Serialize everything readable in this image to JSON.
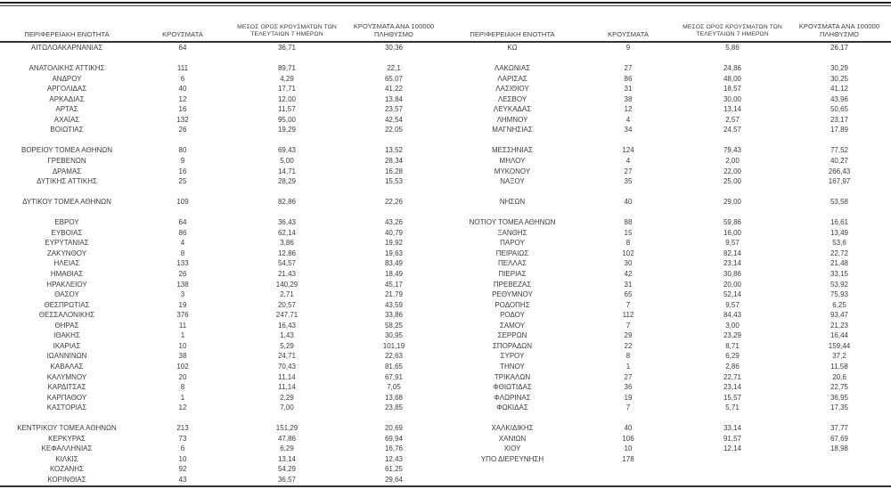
{
  "colors": {
    "text": "#3c3c3c",
    "border": "#333333"
  },
  "table": {
    "headers": {
      "region": "ΠΕΡΙΦΕΡΕΙΑΚΗ ΕΝΟΤΗΤΑ",
      "cases": "ΚΡΟΥΣΜΑΤΑ",
      "avg7": "ΜΕΣΟΣ ΟΡΟΣ ΚΡΟΥΣΜΑΤΩΝ ΤΩΝ ΤΕΛΕΥΤΑΙΩΝ 7 ΗΜΕΡΩΝ",
      "per100k": "ΚΡΟΥΣΜΑΤΑ ΑΝΑ 100000 ΠΛΗΘΥΣΜΟ"
    },
    "left_rows": [
      {
        "region": "ΑΙΤΩΛΟΑΚΑΡΝΑΝΙΑΣ",
        "cases": "64",
        "avg7": "36,71",
        "per100k": "30,36"
      },
      null,
      {
        "region": "ΑΝΑΤΟΛΙΚΗΣ ΑΤΤΙΚΗΣ",
        "cases": "111",
        "avg7": "89,71",
        "per100k": "22,1"
      },
      {
        "region": "ΑΝΔΡΟΥ",
        "cases": "6",
        "avg7": "4,29",
        "per100k": "65,07"
      },
      {
        "region": "ΑΡΓΟΛΙΔΑΣ",
        "cases": "40",
        "avg7": "17,71",
        "per100k": "41,22"
      },
      {
        "region": "ΑΡΚΑΔΙΑΣ",
        "cases": "12",
        "avg7": "12,00",
        "per100k": "13,84"
      },
      {
        "region": "ΑΡΤΑΣ",
        "cases": "16",
        "avg7": "11,57",
        "per100k": "23,57"
      },
      {
        "region": "ΑΧΑΪΑΣ",
        "cases": "132",
        "avg7": "95,00",
        "per100k": "42,54"
      },
      {
        "region": "ΒΟΙΩΤΙΑΣ",
        "cases": "26",
        "avg7": "19,29",
        "per100k": "22,05"
      },
      null,
      {
        "region": "ΒΟΡΕΙΟΥ ΤΟΜΕΑ ΑΘΗΝΩΝ",
        "cases": "80",
        "avg7": "69,43",
        "per100k": "13,52"
      },
      {
        "region": "ΓΡΕΒΕΝΩΝ",
        "cases": "9",
        "avg7": "5,00",
        "per100k": "28,34"
      },
      {
        "region": "ΔΡΑΜΑΣ",
        "cases": "16",
        "avg7": "14,71",
        "per100k": "16,28"
      },
      {
        "region": "ΔΥΤΙΚΗΣ ΑΤΤΙΚΗΣ",
        "cases": "25",
        "avg7": "28,29",
        "per100k": "15,53"
      },
      null,
      {
        "region": "ΔΥΤΙΚΟΥ ΤΟΜΕΑ ΑΘΗΝΩΝ",
        "cases": "109",
        "avg7": "82,86",
        "per100k": "22,26"
      },
      null,
      {
        "region": "ΕΒΡΟΥ",
        "cases": "64",
        "avg7": "36,43",
        "per100k": "43,26"
      },
      {
        "region": "ΕΥΒΟΙΑΣ",
        "cases": "86",
        "avg7": "62,14",
        "per100k": "40,79"
      },
      {
        "region": "ΕΥΡΥΤΑΝΙΑΣ",
        "cases": "4",
        "avg7": "3,86",
        "per100k": "19,92"
      },
      {
        "region": "ΖΑΚΥΝΘΟΥ",
        "cases": "8",
        "avg7": "12,86",
        "per100k": "19,63"
      },
      {
        "region": "ΗΛΕΙΑΣ",
        "cases": "133",
        "avg7": "54,57",
        "per100k": "83,49"
      },
      {
        "region": "ΗΜΑΘΙΑΣ",
        "cases": "26",
        "avg7": "21,43",
        "per100k": "18,49"
      },
      {
        "region": "ΗΡΑΚΛΕΙΟΥ",
        "cases": "138",
        "avg7": "140,29",
        "per100k": "45,17"
      },
      {
        "region": "ΘΑΣΟΥ",
        "cases": "3",
        "avg7": "2,71",
        "per100k": "21,79"
      },
      {
        "region": "ΘΕΣΠΡΩΤΙΑΣ",
        "cases": "19",
        "avg7": "20,57",
        "per100k": "43,59"
      },
      {
        "region": "ΘΕΣΣΑΛΟΝΙΚΗΣ",
        "cases": "376",
        "avg7": "247,71",
        "per100k": "33,86"
      },
      {
        "region": "ΘΗΡΑΣ",
        "cases": "11",
        "avg7": "16,43",
        "per100k": "58,25"
      },
      {
        "region": "ΙΘΑΚΗΣ",
        "cases": "1",
        "avg7": "1,43",
        "per100k": "30,95"
      },
      {
        "region": "ΙΚΑΡΙΑΣ",
        "cases": "10",
        "avg7": "5,29",
        "per100k": "101,19"
      },
      {
        "region": "ΙΩΑΝΝΙΝΩΝ",
        "cases": "38",
        "avg7": "24,71",
        "per100k": "22,63"
      },
      {
        "region": "ΚΑΒΑΛΑΣ",
        "cases": "102",
        "avg7": "70,43",
        "per100k": "81,65"
      },
      {
        "region": "ΚΑΛΥΜΝΟΥ",
        "cases": "20",
        "avg7": "11,14",
        "per100k": "67,91"
      },
      {
        "region": "ΚΑΡΔΙΤΣΑΣ",
        "cases": "8",
        "avg7": "11,14",
        "per100k": "7,05"
      },
      {
        "region": "ΚΑΡΠΑΘΟΥ",
        "cases": "1",
        "avg7": "2,29",
        "per100k": "13,68"
      },
      {
        "region": "ΚΑΣΤΟΡΙΑΣ",
        "cases": "12",
        "avg7": "7,00",
        "per100k": "23,85"
      },
      null,
      {
        "region": "ΚΕΝΤΡΙΚΟΥ ΤΟΜΕΑ ΑΘΗΝΩΝ",
        "cases": "213",
        "avg7": "151,29",
        "per100k": "20,69"
      },
      {
        "region": "ΚΕΡΚΥΡΑΣ",
        "cases": "73",
        "avg7": "47,86",
        "per100k": "69,94"
      },
      {
        "region": "ΚΕΦΑΛΛΗΝΙΑΣ",
        "cases": "6",
        "avg7": "6,29",
        "per100k": "16,76"
      },
      {
        "region": "ΚΙΛΚΙΣ",
        "cases": "10",
        "avg7": "13,14",
        "per100k": "12,43"
      },
      {
        "region": "ΚΟΖΑΝΗΣ",
        "cases": "92",
        "avg7": "54,29",
        "per100k": "61,25"
      },
      {
        "region": "ΚΟΡΙΝΘΙΑΣ",
        "cases": "43",
        "avg7": "36,57",
        "per100k": "29,64"
      }
    ],
    "right_rows": [
      {
        "region": "ΚΩ",
        "cases": "9",
        "avg7": "5,86",
        "per100k": "26,17"
      },
      null,
      {
        "region": "ΛΑΚΩΝΙΑΣ",
        "cases": "27",
        "avg7": "24,86",
        "per100k": "30,29"
      },
      {
        "region": "ΛΑΡΙΣΑΣ",
        "cases": "86",
        "avg7": "48,00",
        "per100k": "30,25"
      },
      {
        "region": "ΛΑΣΙΘΙΟΥ",
        "cases": "31",
        "avg7": "18,57",
        "per100k": "41,12"
      },
      {
        "region": "ΛΕΣΒΟΥ",
        "cases": "38",
        "avg7": "30,00",
        "per100k": "43,96"
      },
      {
        "region": "ΛΕΥΚΑΔΑΣ",
        "cases": "12",
        "avg7": "13,14",
        "per100k": "50,65"
      },
      {
        "region": "ΛΗΜΝΟΥ",
        "cases": "4",
        "avg7": "2,57",
        "per100k": "23,17"
      },
      {
        "region": "ΜΑΓΝΗΣΙΑΣ",
        "cases": "34",
        "avg7": "24,57",
        "per100k": "17,89"
      },
      null,
      {
        "region": "ΜΕΣΣΗΝΙΑΣ",
        "cases": "124",
        "avg7": "79,43",
        "per100k": "77,52"
      },
      {
        "region": "ΜΗΛΟΥ",
        "cases": "4",
        "avg7": "2,00",
        "per100k": "40,27"
      },
      {
        "region": "ΜΥΚΟΝΟΥ",
        "cases": "27",
        "avg7": "22,00",
        "per100k": "266,43"
      },
      {
        "region": "ΝΑΞΟΥ",
        "cases": "35",
        "avg7": "25,00",
        "per100k": "167,97"
      },
      null,
      {
        "region": "ΝΗΣΩΝ",
        "cases": "40",
        "avg7": "29,00",
        "per100k": "53,58"
      },
      null,
      {
        "region": "ΝΟΤΙΟΥ ΤΟΜΕΑ ΑΘΗΝΩΝ",
        "cases": "88",
        "avg7": "59,86",
        "per100k": "16,61"
      },
      {
        "region": "ΞΑΝΘΗΣ",
        "cases": "15",
        "avg7": "16,00",
        "per100k": "13,49"
      },
      {
        "region": "ΠΑΡΟΥ",
        "cases": "8",
        "avg7": "9,57",
        "per100k": "53,6"
      },
      {
        "region": "ΠΕΙΡΑΙΩΣ",
        "cases": "102",
        "avg7": "82,14",
        "per100k": "22,72"
      },
      {
        "region": "ΠΕΛΛΑΣ",
        "cases": "30",
        "avg7": "23,14",
        "per100k": "21,48"
      },
      {
        "region": "ΠΙΕΡΙΑΣ",
        "cases": "42",
        "avg7": "30,86",
        "per100k": "33,15"
      },
      {
        "region": "ΠΡΕΒΕΖΑΣ",
        "cases": "31",
        "avg7": "20,00",
        "per100k": "53,92"
      },
      {
        "region": "ΡΕΘΥΜΝΟΥ",
        "cases": "65",
        "avg7": "52,14",
        "per100k": "75,93"
      },
      {
        "region": "ΡΟΔΟΠΗΣ",
        "cases": "7",
        "avg7": "9,57",
        "per100k": "6,25"
      },
      {
        "region": "ΡΟΔΟΥ",
        "cases": "112",
        "avg7": "84,43",
        "per100k": "93,47"
      },
      {
        "region": "ΣΑΜΟΥ",
        "cases": "7",
        "avg7": "3,00",
        "per100k": "21,23"
      },
      {
        "region": "ΣΕΡΡΩΝ",
        "cases": "29",
        "avg7": "23,29",
        "per100k": "16,44"
      },
      {
        "region": "ΣΠΟΡΑΔΩΝ",
        "cases": "22",
        "avg7": "8,71",
        "per100k": "159,44"
      },
      {
        "region": "ΣΥΡΟΥ",
        "cases": "8",
        "avg7": "6,29",
        "per100k": "37,2"
      },
      {
        "region": "ΤΗΝΟΥ",
        "cases": "1",
        "avg7": "2,86",
        "per100k": "11,58"
      },
      {
        "region": "ΤΡΙΚΑΛΩΝ",
        "cases": "27",
        "avg7": "22,71",
        "per100k": "20,6"
      },
      {
        "region": "ΦΘΙΩΤΙΔΑΣ",
        "cases": "36",
        "avg7": "23,14",
        "per100k": "22,75"
      },
      {
        "region": "ΦΛΩΡΙΝΑΣ",
        "cases": "19",
        "avg7": "15,57",
        "per100k": "36,95"
      },
      {
        "region": "ΦΩΚΙΔΑΣ",
        "cases": "7",
        "avg7": "5,71",
        "per100k": "17,35"
      },
      null,
      {
        "region": "ΧΑΛΚΙΔΙΚΗΣ",
        "cases": "40",
        "avg7": "33,14",
        "per100k": "37,77"
      },
      {
        "region": "ΧΑΝΙΩΝ",
        "cases": "106",
        "avg7": "91,57",
        "per100k": "67,69"
      },
      {
        "region": "ΧΙΟΥ",
        "cases": "10",
        "avg7": "12,14",
        "per100k": "18,98"
      },
      {
        "region": "ΥΠΟ ΔΙΕΡΕΥΝΗΣΗ",
        "cases": "178",
        "avg7": "",
        "per100k": ""
      },
      null,
      null
    ]
  }
}
